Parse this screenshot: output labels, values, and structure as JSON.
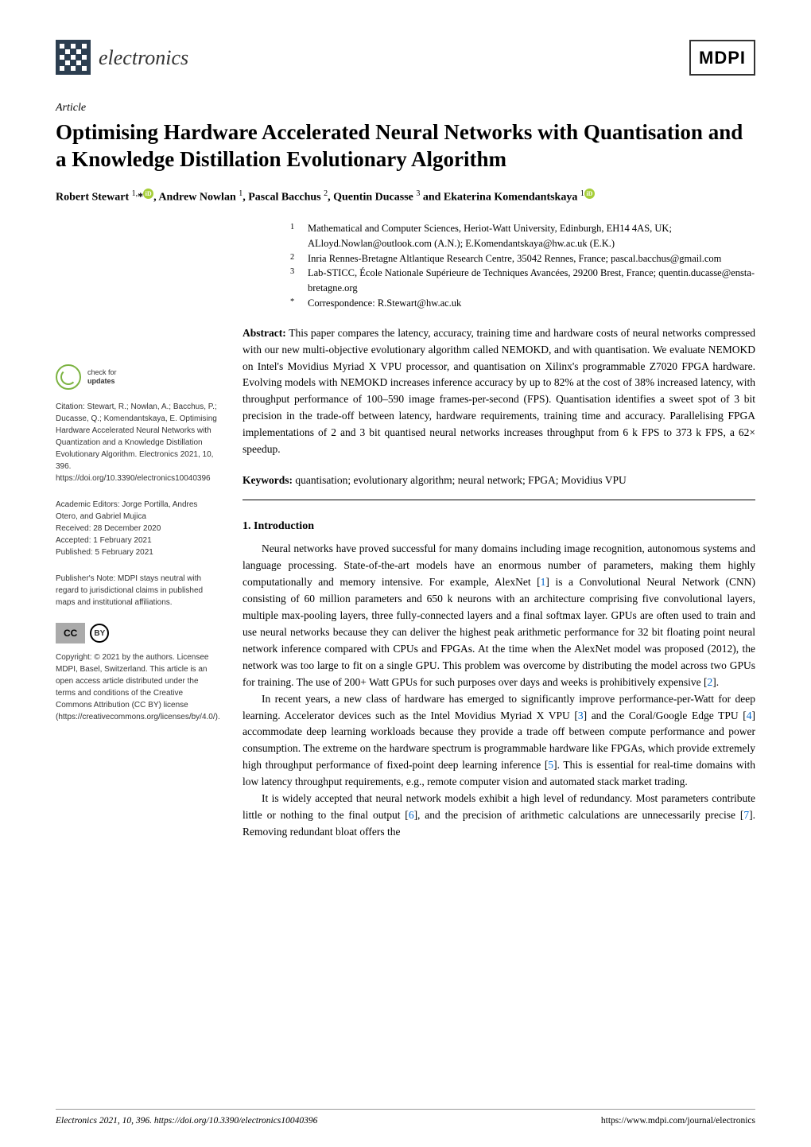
{
  "journal": {
    "name": "electronics",
    "publisher": "MDPI"
  },
  "article": {
    "type": "Article",
    "title": "Optimising Hardware Accelerated Neural Networks with Quantisation and a Knowledge Distillation Evolutionary Algorithm",
    "authors_html": "Robert Stewart <sup>1,</sup>*<span class='orcid'>iD</span>, Andrew Nowlan <sup>1</sup>, Pascal Bacchus <sup>2</sup>, Quentin Ducasse <sup>3</sup> and Ekaterina Komendantskaya <sup>1</sup><span class='orcid'>iD</span>"
  },
  "affiliations": [
    {
      "num": "1",
      "text": "Mathematical and Computer Sciences, Heriot-Watt University, Edinburgh, EH14 4AS, UK; ALloyd.Nowlan@outlook.com (A.N.); E.Komendantskaya@hw.ac.uk (E.K.)"
    },
    {
      "num": "2",
      "text": "Inria Rennes-Bretagne Altlantique Research Centre, 35042 Rennes, France; pascal.bacchus@gmail.com"
    },
    {
      "num": "3",
      "text": "Lab-STICC, École Nationale Supérieure de Techniques Avancées, 29200 Brest, France; quentin.ducasse@ensta-bretagne.org"
    },
    {
      "num": "*",
      "text": "Correspondence: R.Stewart@hw.ac.uk"
    }
  ],
  "abstract": {
    "label": "Abstract:",
    "text": "This paper compares the latency, accuracy, training time and hardware costs of neural networks compressed with our new multi-objective evolutionary algorithm called NEMOKD, and with quantisation. We evaluate NEMOKD on Intel's Movidius Myriad X VPU processor, and quantisation on Xilinx's programmable Z7020 FPGA hardware. Evolving models with NEMOKD increases inference accuracy by up to 82% at the cost of 38% increased latency, with throughput performance of 100–590 image frames-per-second (FPS). Quantisation identifies a sweet spot of 3 bit precision in the trade-off between latency, hardware requirements, training time and accuracy. Parallelising FPGA implementations of 2 and 3 bit quantised neural networks increases throughput from 6 k FPS to 373 k FPS, a 62× speedup."
  },
  "keywords": {
    "label": "Keywords:",
    "text": "quantisation; evolutionary algorithm; neural network; FPGA; Movidius VPU"
  },
  "section1": {
    "heading": "1. Introduction",
    "p1": "Neural networks have proved successful for many domains including image recognition, autonomous systems and language processing. State-of-the-art models have an enormous number of parameters, making them highly computationally and memory intensive. For example, AlexNet [1] is a Convolutional Neural Network (CNN) consisting of 60 million parameters and 650 k neurons with an architecture comprising five convolutional layers, multiple max-pooling layers, three fully-connected layers and a final softmax layer. GPUs are often used to train and use neural networks because they can deliver the highest peak arithmetic performance for 32 bit floating point neural network inference compared with CPUs and FPGAs. At the time when the AlexNet model was proposed (2012), the network was too large to fit on a single GPU. This problem was overcome by distributing the model across two GPUs for training. The use of 200+ Watt GPUs for such purposes over days and weeks is prohibitively expensive [2].",
    "p2": "In recent years, a new class of hardware has emerged to significantly improve performance-per-Watt for deep learning. Accelerator devices such as the Intel Movidius Myriad X VPU [3] and the Coral/Google Edge TPU [4] accommodate deep learning workloads because they provide a trade off between compute performance and power consumption. The extreme on the hardware spectrum is programmable hardware like FPGAs, which provide extremely high throughput performance of fixed-point deep learning inference [5]. This is essential for real-time domains with low latency throughput requirements, e.g., remote computer vision and automated stack market trading.",
    "p3": "It is widely accepted that neural network models exhibit a high level of redundancy. Most parameters contribute little or nothing to the final output [6], and the precision of arithmetic calculations are unnecessarily precise [7]. Removing redundant bloat offers the"
  },
  "sidebar": {
    "check_label": "check for",
    "check_bold": "updates",
    "citation": "Citation: Stewart, R.; Nowlan, A.; Bacchus, P.; Ducasse, Q.; Komendantskaya, E. Optimising Hardware Accelerated Neural Networks with Quantization and a Knowledge Distillation Evolutionary Algorithm. Electronics 2021, 10, 396. https://doi.org/10.3390/electronics10040396",
    "editors": "Academic Editors: Jorge Portilla, Andres Otero, and Gabriel Mujica",
    "received": "Received: 28 December 2020",
    "accepted": "Accepted: 1 February 2021",
    "published": "Published: 5 February 2021",
    "publishers_note": "Publisher's Note: MDPI stays neutral with regard to jurisdictional claims in published maps and institutional affiliations.",
    "copyright": "Copyright: © 2021 by the authors. Licensee MDPI, Basel, Switzerland. This article is an open access article distributed under the terms and conditions of the Creative Commons Attribution (CC BY) license (https://creativecommons.org/licenses/by/4.0/)."
  },
  "footer": {
    "left": "Electronics 2021, 10, 396. https://doi.org/10.3390/electronics10040396",
    "right": "https://www.mdpi.com/journal/electronics"
  },
  "colors": {
    "accent_green": "#7cb342",
    "orcid_green": "#a6ce39",
    "link_blue": "#0066cc",
    "logo_dark": "#2c3e50"
  }
}
